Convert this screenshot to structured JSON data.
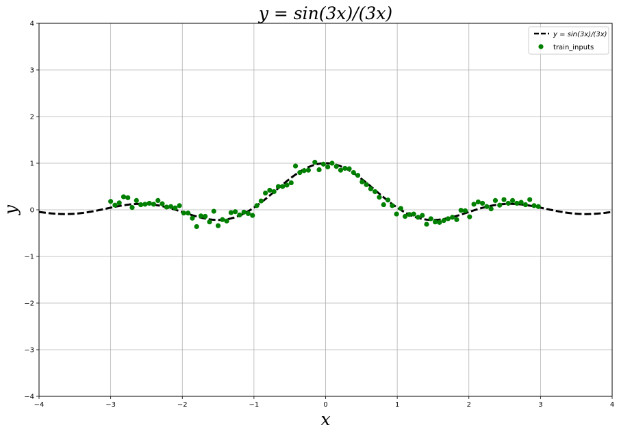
{
  "chart_data": {
    "type": "line",
    "title": "y = sin(3x)/(3x)",
    "xlabel": "x",
    "ylabel": "y",
    "xlim": [
      -4,
      4
    ],
    "ylim": [
      -4,
      4
    ],
    "xticks": [
      -4,
      -3,
      -2,
      -1,
      0,
      1,
      2,
      3,
      4
    ],
    "yticks": [
      -4,
      -3,
      -2,
      -1,
      0,
      1,
      2,
      3,
      4
    ],
    "xtick_labels": [
      "−4",
      "−3",
      "−2",
      "−1",
      "0",
      "1",
      "2",
      "3",
      "4"
    ],
    "ytick_labels": [
      "−4",
      "−3",
      "−2",
      "−1",
      "0",
      "1",
      "2",
      "3",
      "4"
    ],
    "grid": true,
    "legend_position": "top-right",
    "colors": {
      "curve": "#000000",
      "points": "#008000",
      "grid": "#b0b0b0"
    },
    "series": [
      {
        "name": "y = sin(3x)/(3x)",
        "kind": "line",
        "style": "dashed",
        "function": "sin(3x)/(3x)",
        "x_range": [
          -4,
          4
        ]
      },
      {
        "name": "train_inputs",
        "kind": "scatter",
        "points": [
          [
            -3.0,
            0.18
          ],
          [
            -2.94,
            0.1
          ],
          [
            -2.88,
            0.15
          ],
          [
            -2.82,
            0.28
          ],
          [
            -2.76,
            0.26
          ],
          [
            -2.7,
            0.05
          ],
          [
            -2.64,
            0.2
          ],
          [
            -2.58,
            0.11
          ],
          [
            -2.52,
            0.12
          ],
          [
            -2.46,
            0.14
          ],
          [
            -2.4,
            0.12
          ],
          [
            -2.34,
            0.2
          ],
          [
            -2.28,
            0.13
          ],
          [
            -2.22,
            0.06
          ],
          [
            -2.16,
            0.07
          ],
          [
            -2.1,
            0.04
          ],
          [
            -2.04,
            0.09
          ],
          [
            -1.98,
            -0.07
          ],
          [
            -1.92,
            -0.07
          ],
          [
            -1.86,
            -0.18
          ],
          [
            -1.8,
            -0.36
          ],
          [
            -1.74,
            -0.13
          ],
          [
            -1.68,
            -0.14
          ],
          [
            -1.62,
            -0.26
          ],
          [
            -1.56,
            -0.03
          ],
          [
            -1.5,
            -0.34
          ],
          [
            -1.44,
            -0.21
          ],
          [
            -1.38,
            -0.24
          ],
          [
            -1.32,
            -0.06
          ],
          [
            -1.26,
            -0.04
          ],
          [
            -1.2,
            -0.11
          ],
          [
            -1.14,
            -0.05
          ],
          [
            -1.08,
            -0.08
          ],
          [
            -1.02,
            -0.12
          ],
          [
            -0.96,
            0.09
          ],
          [
            -0.9,
            0.19
          ],
          [
            -0.84,
            0.36
          ],
          [
            -0.78,
            0.42
          ],
          [
            -0.72,
            0.39
          ],
          [
            -0.66,
            0.5
          ],
          [
            -0.6,
            0.5
          ],
          [
            -0.54,
            0.53
          ],
          [
            -0.48,
            0.58
          ],
          [
            -0.42,
            0.94
          ],
          [
            -0.36,
            0.8
          ],
          [
            -0.3,
            0.84
          ],
          [
            -0.24,
            0.85
          ],
          [
            -0.15,
            1.02
          ],
          [
            -0.09,
            0.86
          ],
          [
            -0.03,
            0.98
          ],
          [
            0.03,
            0.92
          ],
          [
            0.09,
            1.0
          ],
          [
            0.15,
            0.93
          ],
          [
            0.21,
            0.85
          ],
          [
            0.27,
            0.89
          ],
          [
            0.33,
            0.88
          ],
          [
            0.39,
            0.8
          ],
          [
            0.45,
            0.74
          ],
          [
            0.51,
            0.6
          ],
          [
            0.57,
            0.54
          ],
          [
            0.63,
            0.45
          ],
          [
            0.69,
            0.39
          ],
          [
            0.75,
            0.27
          ],
          [
            0.81,
            0.11
          ],
          [
            0.87,
            0.21
          ],
          [
            0.93,
            0.09
          ],
          [
            0.99,
            -0.09
          ],
          [
            1.05,
            0.03
          ],
          [
            1.11,
            -0.14
          ],
          [
            1.17,
            -0.1
          ],
          [
            1.23,
            -0.09
          ],
          [
            1.29,
            -0.16
          ],
          [
            1.35,
            -0.12
          ],
          [
            1.41,
            -0.31
          ],
          [
            1.47,
            -0.19
          ],
          [
            1.53,
            -0.26
          ],
          [
            1.59,
            -0.27
          ],
          [
            1.65,
            -0.23
          ],
          [
            1.71,
            -0.19
          ],
          [
            1.77,
            -0.16
          ],
          [
            1.83,
            -0.21
          ],
          [
            1.89,
            -0.01
          ],
          [
            1.95,
            -0.02
          ],
          [
            2.01,
            -0.15
          ],
          [
            2.07,
            0.12
          ],
          [
            2.13,
            0.17
          ],
          [
            2.19,
            0.14
          ],
          [
            2.25,
            0.07
          ],
          [
            2.31,
            0.02
          ],
          [
            2.37,
            0.2
          ],
          [
            2.43,
            0.1
          ],
          [
            2.49,
            0.22
          ],
          [
            2.55,
            0.14
          ],
          [
            2.61,
            0.2
          ],
          [
            2.67,
            0.14
          ],
          [
            2.73,
            0.16
          ],
          [
            2.79,
            0.11
          ],
          [
            2.85,
            0.22
          ],
          [
            2.91,
            0.09
          ],
          [
            2.97,
            0.07
          ]
        ]
      }
    ]
  },
  "legend": {
    "line_label": "y = sin(3x)/(3x)",
    "scatter_label": "train_inputs"
  }
}
